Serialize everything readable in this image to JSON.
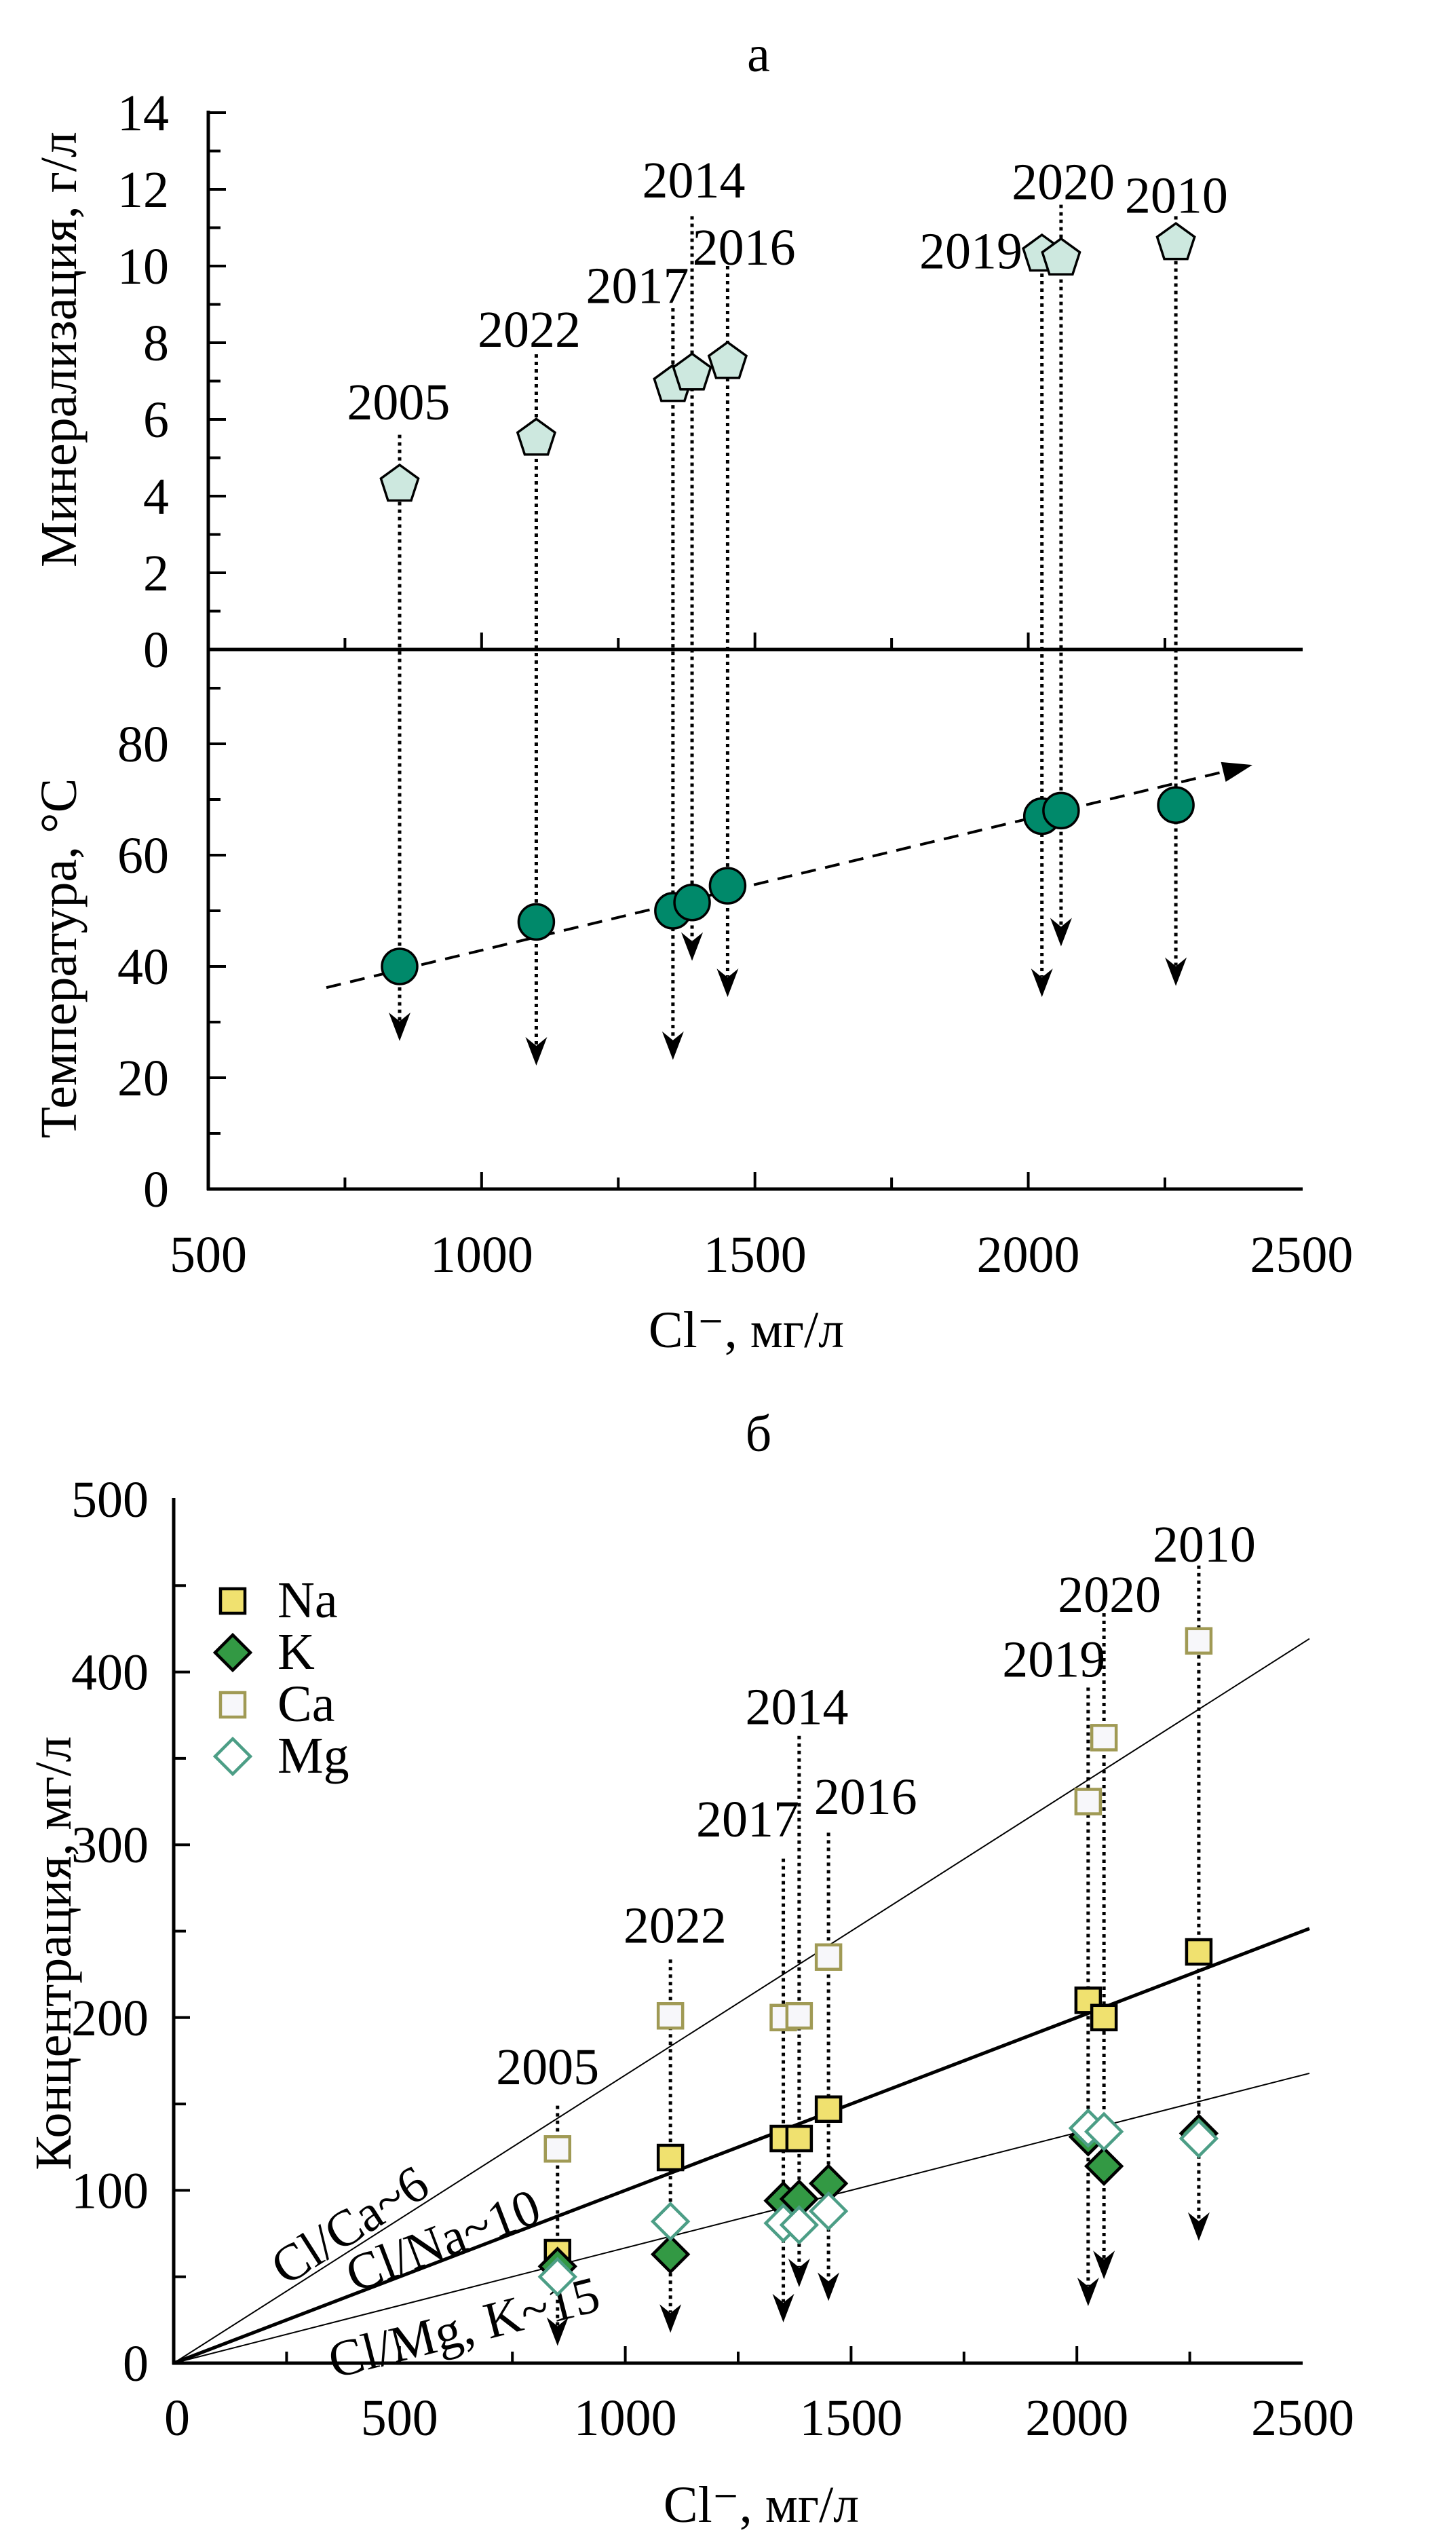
{
  "chart_data": [
    {
      "type": "scatter",
      "title": "а",
      "xlabel": "Cl⁻, мг/л",
      "xlim": [
        500,
        2500
      ],
      "xticks": [
        "500",
        "1000",
        "1500",
        "2000",
        "2500"
      ],
      "panels": [
        {
          "ylabel": "Минерализация, г/л",
          "ylim": [
            0,
            14
          ],
          "yticks": [
            "0",
            "2",
            "4",
            "6",
            "8",
            "10",
            "12",
            "14"
          ],
          "series": [
            {
              "name": "Минерализация",
              "marker": "pentagon",
              "color": "#cde8df",
              "points": [
                {
                  "year": "2005",
                  "x": 850,
                  "y": 4.3
                },
                {
                  "year": "2022",
                  "x": 1100,
                  "y": 5.5
                },
                {
                  "year": "2017",
                  "x": 1350,
                  "y": 6.9
                },
                {
                  "year": "2014",
                  "x": 1385,
                  "y": 7.2
                },
                {
                  "year": "2016",
                  "x": 1450,
                  "y": 7.5
                },
                {
                  "year": "2019",
                  "x": 2025,
                  "y": 10.3
                },
                {
                  "year": "2020",
                  "x": 2060,
                  "y": 10.2
                },
                {
                  "year": "2010",
                  "x": 2270,
                  "y": 10.6
                }
              ]
            }
          ]
        },
        {
          "ylabel": "Температура, °C",
          "ylim": [
            0,
            97
          ],
          "yticks": [
            "0",
            "20",
            "40",
            "60",
            "80"
          ],
          "series": [
            {
              "name": "Температура",
              "marker": "circle",
              "color": "#00896a",
              "points": [
                {
                  "year": "2005",
                  "x": 850,
                  "y": 40
                },
                {
                  "year": "2022",
                  "x": 1100,
                  "y": 48
                },
                {
                  "year": "2017",
                  "x": 1350,
                  "y": 50
                },
                {
                  "year": "2014",
                  "x": 1385,
                  "y": 51.5
                },
                {
                  "year": "2016",
                  "x": 1450,
                  "y": 54.5
                },
                {
                  "year": "2019",
                  "x": 2025,
                  "y": 67
                },
                {
                  "year": "2020",
                  "x": 2060,
                  "y": 68
                },
                {
                  "year": "2010",
                  "x": 2270,
                  "y": 69
                }
              ]
            }
          ],
          "trend": {
            "x": [
              716,
              2410
            ],
            "y": [
              36.2,
              76.2
            ],
            "style": "dashed-arrow"
          }
        }
      ],
      "annotations": [
        "2005",
        "2022",
        "2017",
        "2014",
        "2016",
        "2019",
        "2020",
        "2010"
      ]
    },
    {
      "type": "scatter",
      "title": "б",
      "xlabel": "Cl⁻, мг/л",
      "ylabel": "Концентрация, мг/л",
      "xlim": [
        0,
        2500
      ],
      "ylim": [
        0,
        500
      ],
      "xticks": [
        "0",
        "500",
        "1000",
        "1500",
        "2000",
        "2500"
      ],
      "yticks": [
        "0",
        "100",
        "200",
        "300",
        "400",
        "500"
      ],
      "legend_position": "top-left",
      "x": [
        850,
        1100,
        1350,
        1385,
        1450,
        2025,
        2060,
        2270
      ],
      "years": [
        "2005",
        "2022",
        "2017",
        "2014",
        "2016",
        "2019",
        "2020",
        "2010"
      ],
      "series": [
        {
          "name": "Na",
          "marker": "square",
          "fill": "#f0e16f",
          "stroke": "#000000",
          "values": [
            64,
            119,
            130,
            130,
            147,
            210,
            200,
            238
          ]
        },
        {
          "name": "K",
          "marker": "diamond",
          "fill": "#339944",
          "stroke": "#000000",
          "values": [
            56,
            63,
            94,
            95,
            104,
            131,
            114,
            133
          ]
        },
        {
          "name": "Ca",
          "marker": "square-open",
          "fill": "#f7f7fa",
          "stroke": "#a09a55",
          "values": [
            124,
            201,
            200,
            201,
            235,
            325,
            362,
            418
          ]
        },
        {
          "name": "Mg",
          "marker": "diamond-open",
          "fill": "#ffffff",
          "stroke": "#4c9e86",
          "values": [
            50,
            82,
            81,
            80,
            88,
            136,
            134,
            130
          ]
        }
      ],
      "ratio_lines": [
        {
          "label": "Cl/Ca~6",
          "slope": 0.1667,
          "weight": "thin"
        },
        {
          "label": "Cl/Na~10",
          "slope": 0.1,
          "weight": "bold"
        },
        {
          "label": "Cl/Mg, K~15",
          "slope": 0.0667,
          "weight": "thin"
        }
      ]
    }
  ]
}
